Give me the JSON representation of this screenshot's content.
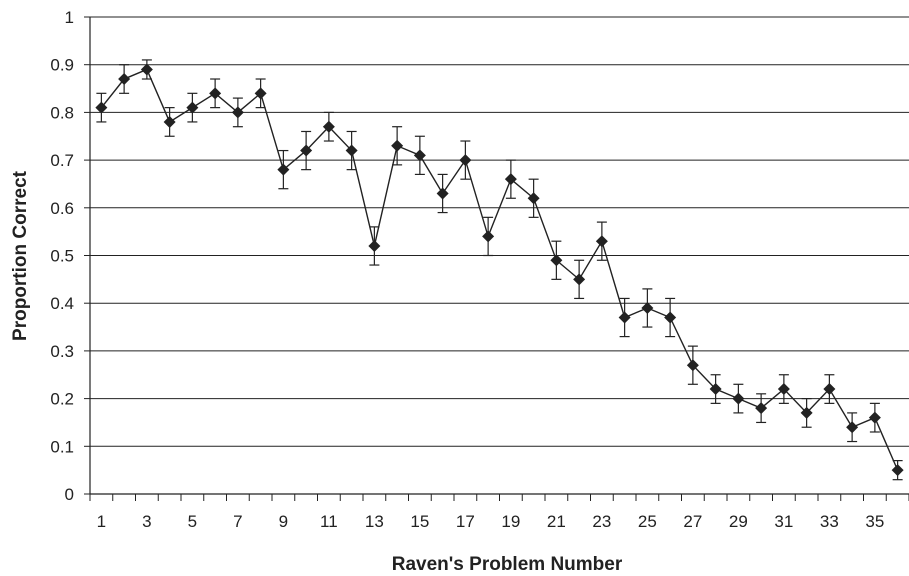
{
  "chart_data": {
    "type": "line",
    "title": "",
    "xlabel": "Raven's Problem Number",
    "ylabel": "Proportion Correct",
    "xlim": [
      1,
      36
    ],
    "ylim": [
      0,
      1
    ],
    "grid": true,
    "legend": "none",
    "y_ticks": [
      "0",
      "0.1",
      "0.2",
      "0.3",
      "0.4",
      "0.5",
      "0.6",
      "0.7",
      "0.8",
      "0.9",
      "1"
    ],
    "x_tick_labels": [
      "1",
      "3",
      "5",
      "7",
      "9",
      "11",
      "13",
      "15",
      "17",
      "19",
      "21",
      "23",
      "25",
      "27",
      "29",
      "31",
      "33",
      "35"
    ],
    "series": [
      {
        "x": [
          1,
          2,
          3,
          4,
          5,
          6,
          7,
          8,
          9,
          10,
          11,
          12,
          13,
          14,
          15,
          16,
          17,
          18,
          19,
          20,
          21,
          22,
          23,
          24,
          25,
          26,
          27,
          28,
          29,
          30,
          31,
          32,
          33,
          34,
          35,
          36
        ],
        "values": [
          0.81,
          0.87,
          0.89,
          0.78,
          0.81,
          0.84,
          0.8,
          0.84,
          0.68,
          0.72,
          0.77,
          0.72,
          0.52,
          0.73,
          0.71,
          0.63,
          0.7,
          0.54,
          0.66,
          0.62,
          0.49,
          0.45,
          0.53,
          0.37,
          0.39,
          0.37,
          0.27,
          0.22,
          0.2,
          0.18,
          0.22,
          0.17,
          0.22,
          0.14,
          0.16,
          0.05
        ],
        "error": [
          0.03,
          0.03,
          0.02,
          0.03,
          0.03,
          0.03,
          0.03,
          0.03,
          0.04,
          0.04,
          0.03,
          0.04,
          0.04,
          0.04,
          0.04,
          0.04,
          0.04,
          0.04,
          0.04,
          0.04,
          0.04,
          0.04,
          0.04,
          0.04,
          0.04,
          0.04,
          0.04,
          0.03,
          0.03,
          0.03,
          0.03,
          0.03,
          0.03,
          0.03,
          0.03,
          0.02
        ]
      }
    ]
  },
  "colors": {
    "line": "#222222",
    "marker": "#222222",
    "grid": "#222222"
  }
}
